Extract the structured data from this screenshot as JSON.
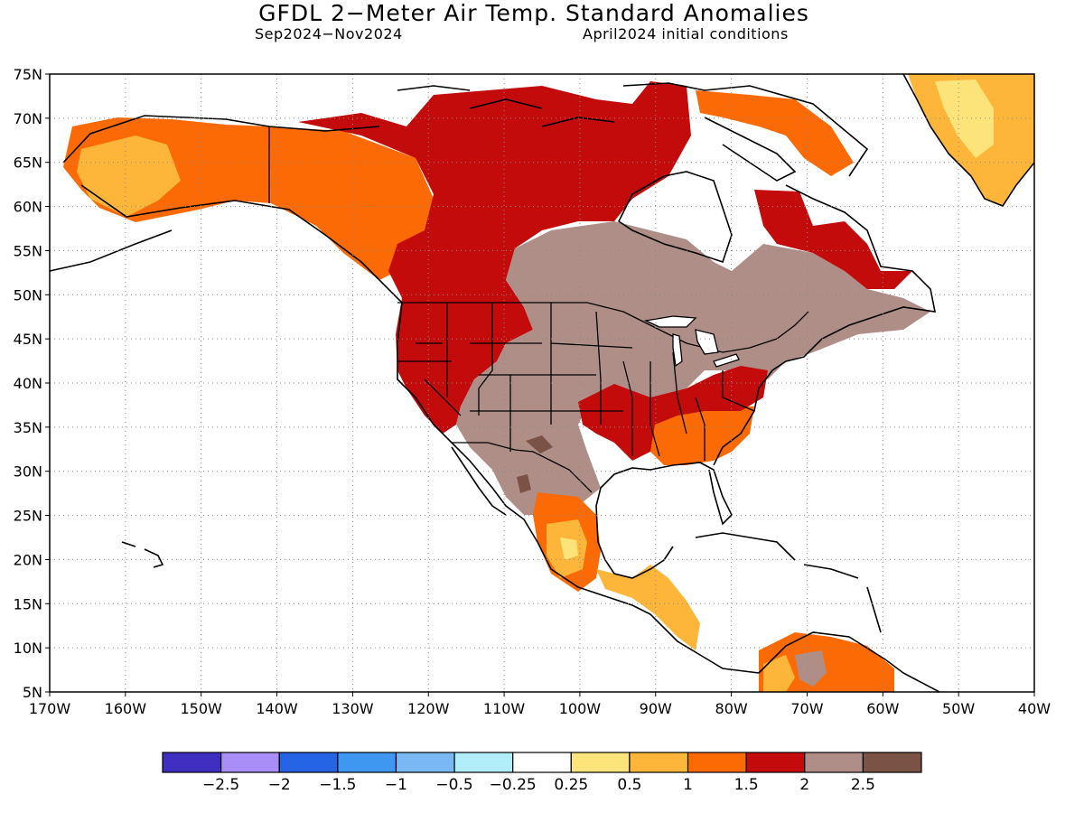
{
  "title": "GFDL 2−Meter Air Temp. Standard Anomalies",
  "subtitle_left": "Sep2024−Nov2024",
  "subtitle_right": "April2024 initial conditions",
  "map": {
    "lon_range": [
      -170,
      -40
    ],
    "lat_range": [
      5,
      75
    ],
    "lon_ticks": [
      "170W",
      "160W",
      "150W",
      "140W",
      "130W",
      "120W",
      "110W",
      "100W",
      "90W",
      "80W",
      "70W",
      "60W",
      "50W",
      "40W"
    ],
    "lat_ticks": [
      "75N",
      "70N",
      "65N",
      "60N",
      "55N",
      "50N",
      "45N",
      "40N",
      "35N",
      "30N",
      "25N",
      "20N",
      "15N",
      "10N",
      "5N"
    ],
    "grid": "dotted"
  },
  "colorbar": {
    "colors": [
      "#3f2ec0",
      "#a98ef7",
      "#2664e6",
      "#3f97f2",
      "#79b8f5",
      "#b1eefa",
      "#ffffff",
      "#fde47a",
      "#fdb63a",
      "#fb6a05",
      "#c40b0b",
      "#b08e88",
      "#7a5246"
    ],
    "labels": [
      "−2.5",
      "−2",
      "−1.5",
      "−1",
      "−0.5",
      "−0.25",
      "0.25",
      "0.5",
      "1",
      "1.5",
      "2",
      "2.5"
    ]
  }
}
